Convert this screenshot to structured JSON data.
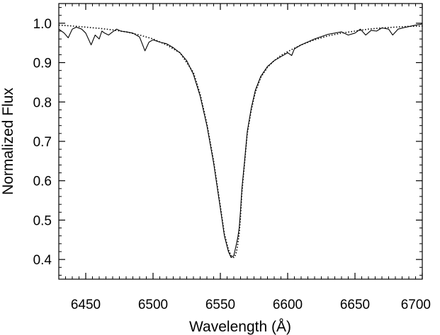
{
  "chart_data": {
    "type": "line",
    "title": "",
    "xlabel": "Wavelength (Å)",
    "ylabel": "Normalized Flux",
    "xlim": [
      6430,
      6700
    ],
    "ylim": [
      0.35,
      1.05
    ],
    "xticks": [
      6450,
      6500,
      6550,
      6600,
      6650,
      6700
    ],
    "xtick_labels": [
      "6450",
      "6500",
      "6550",
      "6600",
      "6650",
      "6700"
    ],
    "yticks": [
      0.4,
      0.5,
      0.6,
      0.7,
      0.8,
      0.9,
      1.0
    ],
    "ytick_labels": [
      "0.4",
      "0.5",
      "0.6",
      "0.7",
      "0.8",
      "0.9",
      "1.0"
    ],
    "grid": false,
    "legend": "none",
    "series": [
      {
        "style": "solid",
        "color": "#000000",
        "x": [
          6430,
          6434,
          6437,
          6440,
          6443,
          6447,
          6450,
          6454,
          6457,
          6460,
          6462,
          6464,
          6467,
          6470,
          6473,
          6476,
          6480,
          6485,
          6490,
          6494,
          6497,
          6500,
          6505,
          6510,
          6515,
          6518,
          6520,
          6525,
          6530,
          6535,
          6540,
          6545,
          6550,
          6553,
          6556,
          6558,
          6560,
          6561,
          6562,
          6563,
          6564,
          6565,
          6566,
          6568,
          6570,
          6573,
          6576,
          6580,
          6585,
          6590,
          6595,
          6600,
          6603,
          6605,
          6610,
          6620,
          6630,
          6640,
          6645,
          6650,
          6654,
          6658,
          6662,
          6666,
          6670,
          6675,
          6678,
          6682,
          6688,
          6695,
          6700
        ],
        "y": [
          0.985,
          0.975,
          0.963,
          0.985,
          0.99,
          0.985,
          0.975,
          0.945,
          0.97,
          0.96,
          0.98,
          0.975,
          0.97,
          0.978,
          0.985,
          0.98,
          0.978,
          0.975,
          0.965,
          0.93,
          0.952,
          0.958,
          0.952,
          0.948,
          0.938,
          0.93,
          0.925,
          0.905,
          0.87,
          0.815,
          0.74,
          0.645,
          0.53,
          0.46,
          0.42,
          0.405,
          0.41,
          0.425,
          0.44,
          0.457,
          0.48,
          0.525,
          0.58,
          0.65,
          0.725,
          0.785,
          0.83,
          0.865,
          0.89,
          0.905,
          0.915,
          0.925,
          0.918,
          0.935,
          0.945,
          0.96,
          0.972,
          0.978,
          0.97,
          0.975,
          0.985,
          0.97,
          0.982,
          0.98,
          0.988,
          0.985,
          0.97,
          0.985,
          0.99,
          0.995,
          0.998
        ]
      },
      {
        "style": "dotted",
        "color": "#000000",
        "x": [
          6430,
          6440,
          6450,
          6460,
          6470,
          6480,
          6490,
          6500,
          6510,
          6520,
          6530,
          6535,
          6540,
          6545,
          6550,
          6553,
          6556,
          6558,
          6560,
          6561,
          6562,
          6563,
          6564,
          6565,
          6566,
          6568,
          6570,
          6573,
          6576,
          6580,
          6585,
          6590,
          6595,
          6600,
          6610,
          6620,
          6630,
          6640,
          6650,
          6660,
          6670,
          6680,
          6690,
          6700
        ],
        "y": [
          0.995,
          0.993,
          0.99,
          0.987,
          0.983,
          0.978,
          0.97,
          0.96,
          0.945,
          0.925,
          0.875,
          0.82,
          0.745,
          0.65,
          0.535,
          0.465,
          0.425,
          0.41,
          0.405,
          0.41,
          0.42,
          0.44,
          0.465,
          0.51,
          0.57,
          0.645,
          0.72,
          0.78,
          0.825,
          0.862,
          0.888,
          0.905,
          0.918,
          0.928,
          0.945,
          0.958,
          0.968,
          0.975,
          0.98,
          0.985,
          0.988,
          0.99,
          0.992,
          0.993
        ]
      }
    ]
  }
}
